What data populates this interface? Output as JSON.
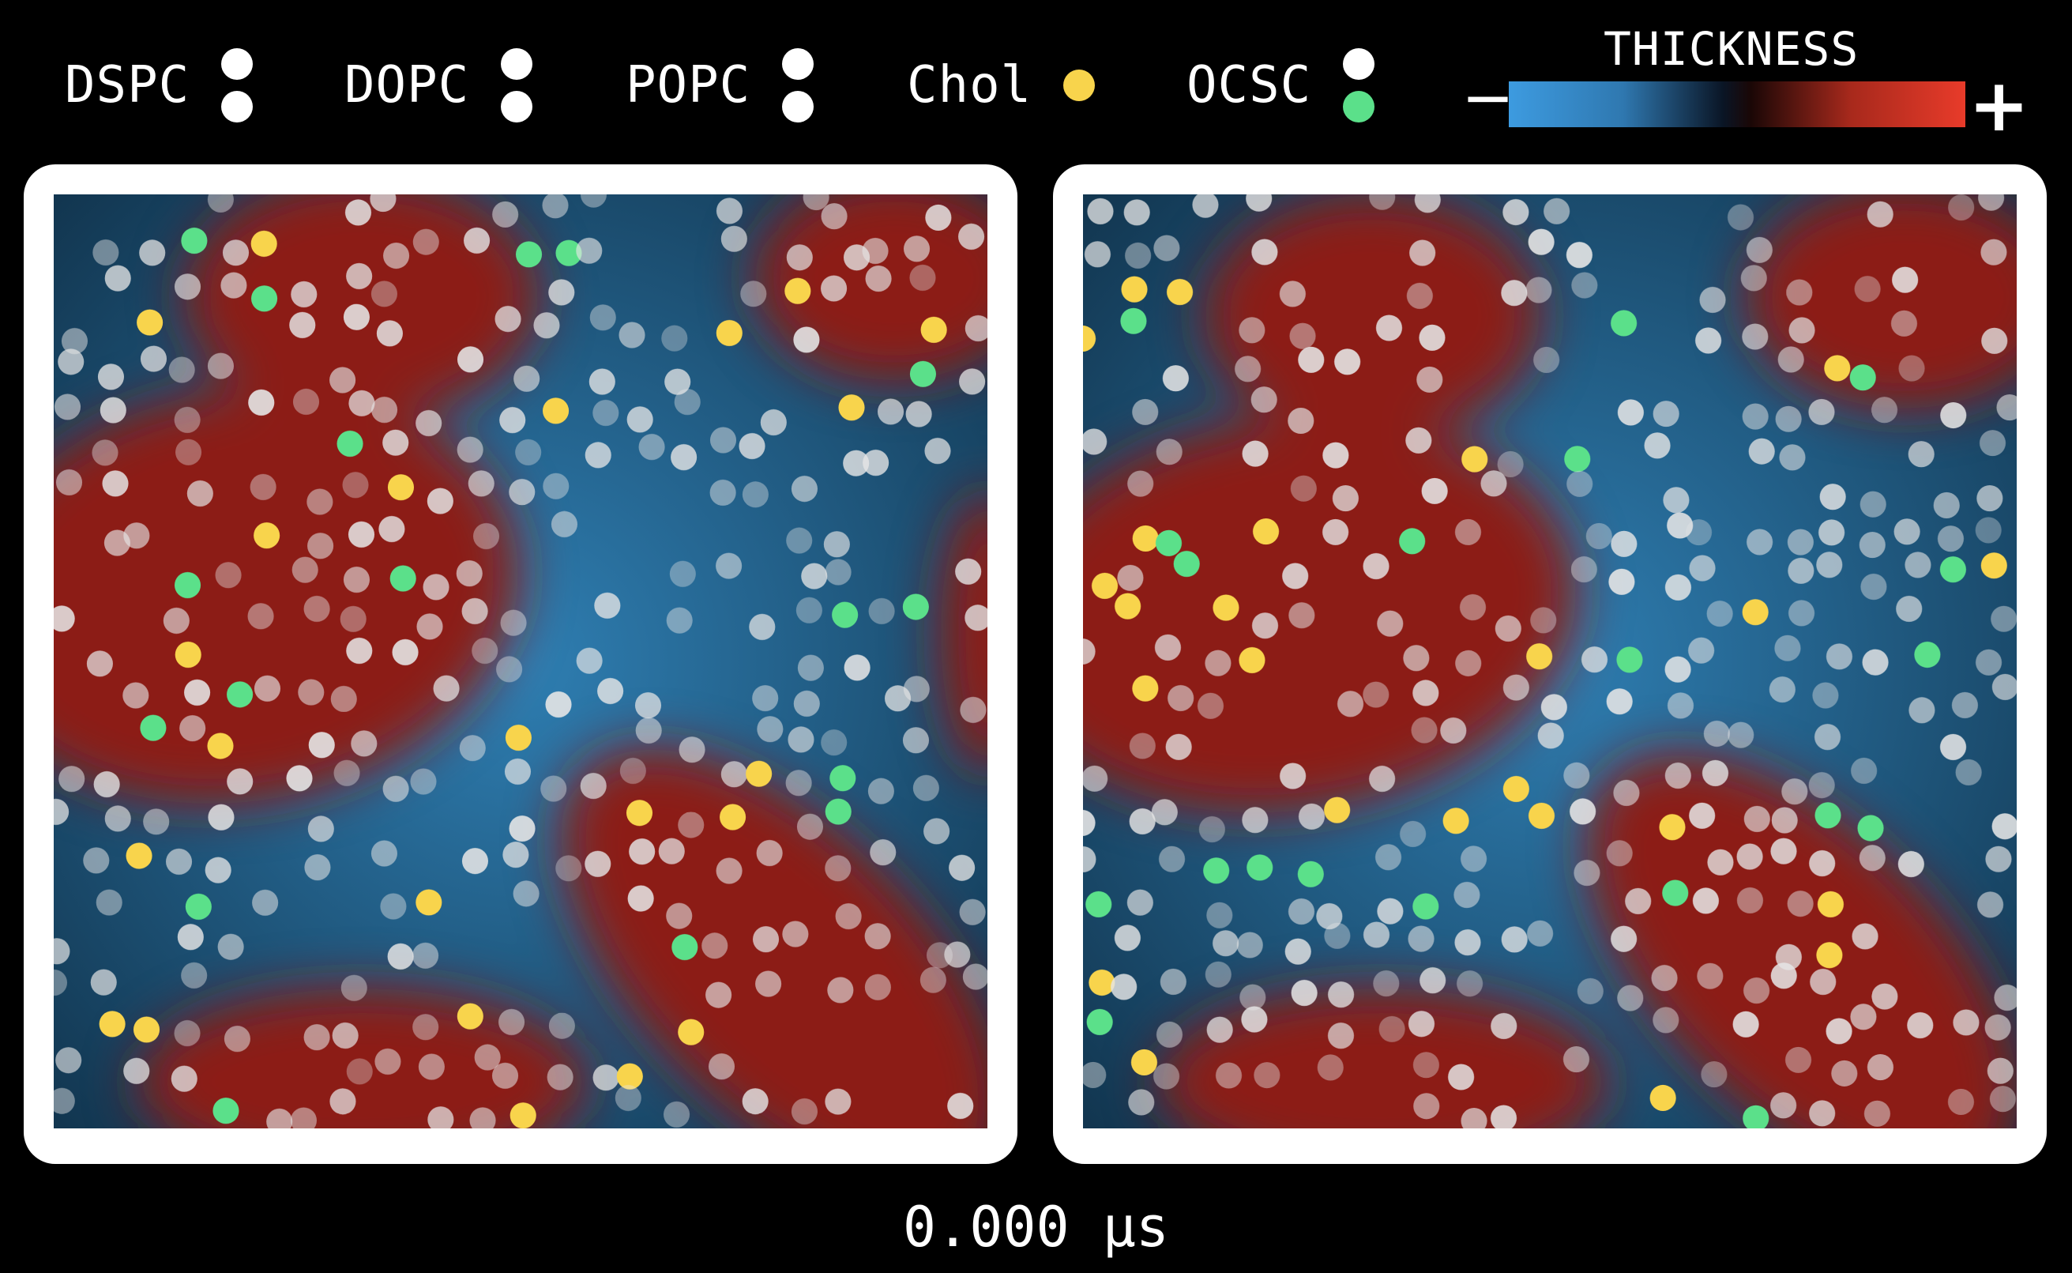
{
  "legend": {
    "items": [
      {
        "label": "DSPC",
        "dots": [
          "#ffffff",
          "#ffffff"
        ]
      },
      {
        "label": "DOPC",
        "dots": [
          "#ffffff",
          "#ffffff"
        ]
      },
      {
        "label": "POPC",
        "dots": [
          "#ffffff",
          "#ffffff"
        ]
      },
      {
        "label": "Chol",
        "dots": [
          "#f8d44c"
        ]
      },
      {
        "label": "OCSC",
        "dots": [
          "#ffffff",
          "#5be08a"
        ]
      }
    ]
  },
  "colorbar": {
    "title": "THICKNESS",
    "minus": "−",
    "plus": "+",
    "thin_color": "#3d9be0",
    "thick_color": "#e83b2a",
    "mid_color": "#0a1525"
  },
  "colors": {
    "background": "#000000",
    "frame": "#ffffff",
    "thin_domain": "#1f5f85",
    "thick_domain": "#8c1e12",
    "chol": "#f8d44c",
    "ocsc": "#5be08a",
    "lipid": "#e6e6e6"
  },
  "time": "0.000 µs"
}
